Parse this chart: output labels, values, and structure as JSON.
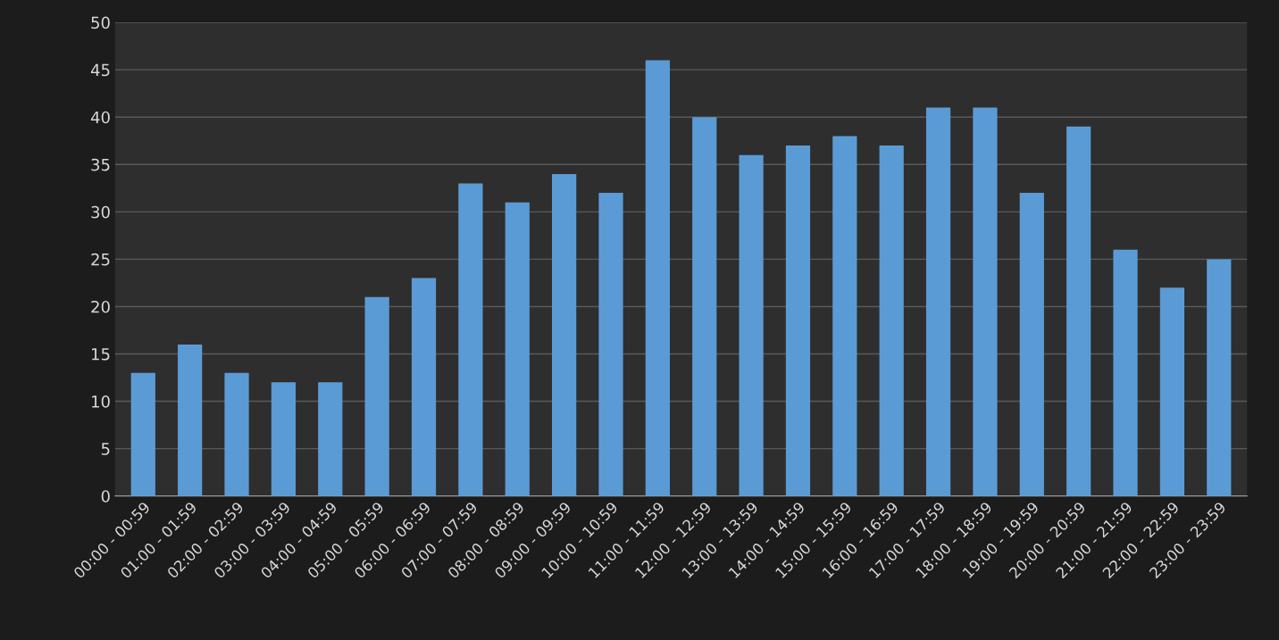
{
  "chart_data": {
    "type": "bar",
    "categories": [
      "00:00 - 00:59",
      "01:00 - 01:59",
      "02:00 - 02:59",
      "03:00 - 03:59",
      "04:00 - 04:59",
      "05:00 - 05:59",
      "06:00 - 06:59",
      "07:00 - 07:59",
      "08:00 - 08:59",
      "09:00 - 09:59",
      "10:00 - 10:59",
      "11:00 - 11:59",
      "12:00 - 12:59",
      "13:00 - 13:59",
      "14:00 - 14:59",
      "15:00 - 15:59",
      "16:00 - 16:59",
      "17:00 - 17:59",
      "18:00 - 18:59",
      "19:00 - 19:59",
      "20:00 - 20:59",
      "21:00 - 21:59",
      "22:00 - 22:59",
      "23:00 - 23:59"
    ],
    "values": [
      13,
      16,
      13,
      12,
      12,
      21,
      23,
      33,
      31,
      34,
      32,
      46,
      40,
      36,
      37,
      38,
      37,
      41,
      41,
      32,
      39,
      26,
      22,
      25
    ],
    "color": "#5b9bd5",
    "ylim": [
      0,
      50
    ],
    "yticks": [
      0,
      5,
      10,
      15,
      20,
      25,
      30,
      35,
      40,
      45,
      50
    ],
    "grid": "y"
  }
}
